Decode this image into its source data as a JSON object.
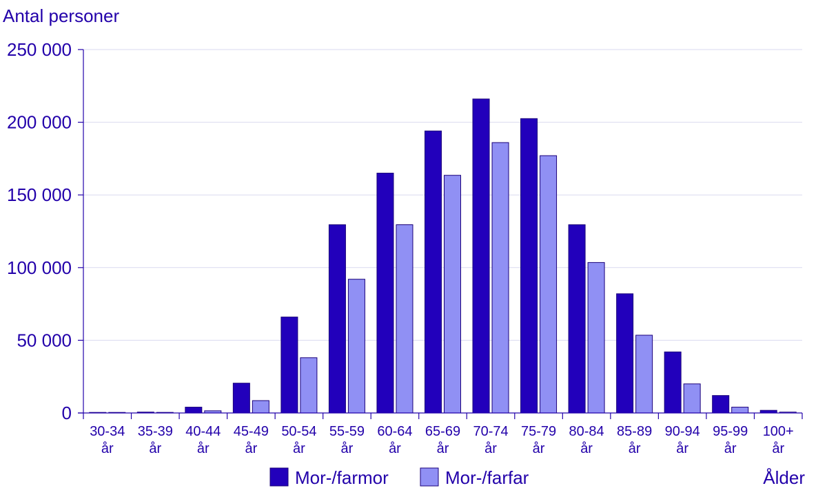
{
  "chart_data": {
    "type": "bar",
    "title": "",
    "ylabel": "Antal personer",
    "xlabel": "Ålder",
    "ylim": [
      0,
      250000
    ],
    "yticks": [
      0,
      50000,
      100000,
      150000,
      200000,
      250000
    ],
    "ytick_labels": [
      "0",
      "50 000",
      "100 000",
      "150 000",
      "200 000",
      "250 000"
    ],
    "grid": true,
    "legend_position": "bottom-center",
    "categories": [
      [
        "30-34",
        "år"
      ],
      [
        "35-39",
        "år"
      ],
      [
        "40-44",
        "år"
      ],
      [
        "45-49",
        "år"
      ],
      [
        "50-54",
        "år"
      ],
      [
        "55-59",
        "år"
      ],
      [
        "60-64",
        "år"
      ],
      [
        "65-69",
        "år"
      ],
      [
        "70-74",
        "år"
      ],
      [
        "75-79",
        "år"
      ],
      [
        "80-84",
        "år"
      ],
      [
        "85-89",
        "år"
      ],
      [
        "90-94",
        "år"
      ],
      [
        "95-99",
        "år"
      ],
      [
        "100+",
        "år"
      ]
    ],
    "series": [
      {
        "name": "Mor-/farmor",
        "color": "#2200bb",
        "values": [
          300,
          600,
          4000,
          20500,
          66000,
          129500,
          165000,
          194000,
          216000,
          202500,
          129500,
          82000,
          42000,
          12000,
          1800
        ]
      },
      {
        "name": "Mor-/farfar",
        "color": "#9090f4",
        "values": [
          200,
          400,
          1500,
          8500,
          38000,
          92000,
          129500,
          163500,
          186000,
          177000,
          103500,
          53500,
          20000,
          4000,
          600
        ]
      }
    ]
  }
}
